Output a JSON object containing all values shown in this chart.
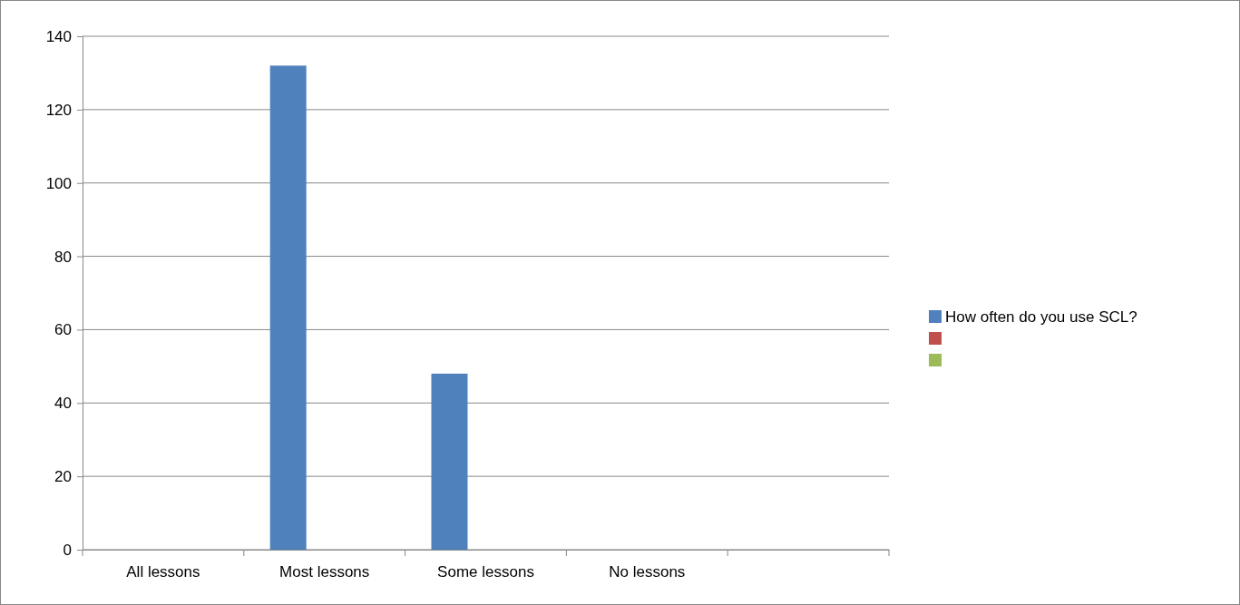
{
  "chart_data": {
    "type": "bar",
    "categories": [
      "All lessons",
      "Most lessons",
      "Some lessons",
      "No lessons",
      null
    ],
    "series": [
      {
        "name": "How often do you use SCL?",
        "color": "#4f81bd",
        "values": [
          0,
          132,
          48,
          0,
          null
        ]
      },
      {
        "color": "#c0504d",
        "values": [
          null,
          null,
          null,
          null,
          null
        ]
      },
      {
        "color": "#9bbb59",
        "values": [
          null,
          null,
          null,
          null,
          null
        ]
      }
    ],
    "ylim": [
      0,
      140
    ],
    "yticks": [
      0,
      20,
      40,
      60,
      80,
      100,
      120,
      140
    ],
    "grid": "y",
    "legend": "right"
  }
}
